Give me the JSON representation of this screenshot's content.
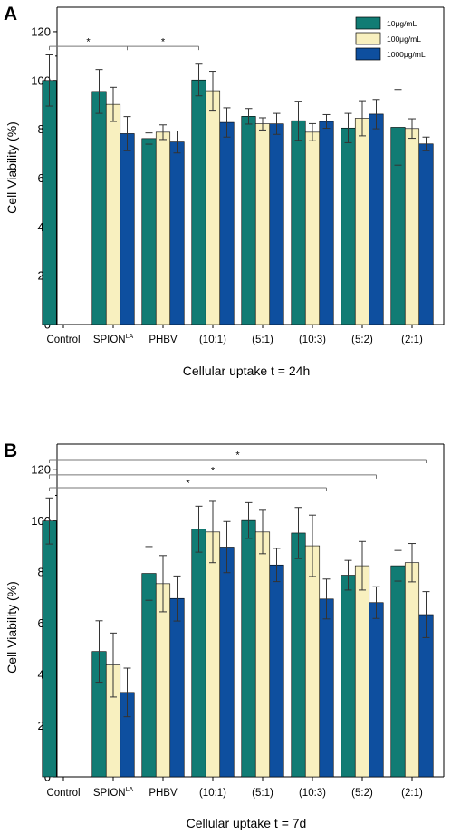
{
  "colors": {
    "series": [
      "#117c74",
      "#f8f0bf",
      "#0e4f9f"
    ],
    "axis": "#000000",
    "errorbar": "#333333",
    "bracket": "#777777"
  },
  "chart_data": [
    {
      "type": "bar",
      "panel": "A",
      "title": "",
      "xlabel": "Cellular uptake  t = 24h",
      "ylabel": "Cell Viability (%)",
      "ylim": [
        0,
        130
      ],
      "yticks": [
        0,
        20,
        40,
        60,
        80,
        100,
        120
      ],
      "grid": false,
      "legend_position": "top-right",
      "categories": [
        {
          "main": "Control",
          "sup": ""
        },
        {
          "main": "SPION",
          "sup": "LA"
        },
        {
          "main": "PHBV",
          "sup": ""
        },
        {
          "main": "(10:1)",
          "sup": ""
        },
        {
          "main": "(5:1)",
          "sup": ""
        },
        {
          "main": "(10:3)",
          "sup": ""
        },
        {
          "main": "(5:2)",
          "sup": ""
        },
        {
          "main": "(2:1)",
          "sup": ""
        }
      ],
      "series": [
        {
          "name": "10μg/mL",
          "values": [
            100,
            95.5,
            76.2,
            100.2,
            85.3,
            83.5,
            80.5,
            80.8
          ],
          "errors": [
            10.5,
            9,
            2.3,
            6.5,
            3.2,
            8,
            6,
            15.5
          ]
        },
        {
          "name": "100μg/mL",
          "values": [
            null,
            90.2,
            78.8,
            95.8,
            82.2,
            78.8,
            84.5,
            80.3
          ],
          "errors": [
            null,
            7,
            3,
            8,
            2.5,
            3.5,
            7.2,
            4
          ]
        },
        {
          "name": "1000μg/mL",
          "values": [
            null,
            78.2,
            74.8,
            82.8,
            82.2,
            83.2,
            86.2,
            74
          ],
          "errors": [
            null,
            7,
            4.5,
            6,
            4.3,
            2.8,
            6,
            2.8
          ]
        }
      ],
      "significance": [
        {
          "from": [
            0,
            0
          ],
          "to": [
            1,
            2
          ],
          "label": "*"
        },
        {
          "from": [
            1,
            2
          ],
          "to": [
            3,
            0
          ],
          "label": "*"
        }
      ]
    },
    {
      "type": "bar",
      "panel": "B",
      "title": "",
      "xlabel": "Cellular uptake t = 7d",
      "ylabel": "Cell Viability (%)",
      "ylim": [
        0,
        130
      ],
      "yticks": [
        0,
        20,
        40,
        60,
        80,
        100,
        120
      ],
      "grid": false,
      "legend_position": "none",
      "categories": [
        {
          "main": "Control",
          "sup": ""
        },
        {
          "main": "SPION",
          "sup": "LA"
        },
        {
          "main": "PHBV",
          "sup": ""
        },
        {
          "main": "(10:1)",
          "sup": ""
        },
        {
          "main": "(5:1)",
          "sup": ""
        },
        {
          "main": "(10:3)",
          "sup": ""
        },
        {
          "main": "(5:2)",
          "sup": ""
        },
        {
          "main": "(2:1)",
          "sup": ""
        }
      ],
      "series": [
        {
          "name": "10μg/mL",
          "values": [
            100,
            49,
            79.5,
            96.8,
            100.2,
            95.3,
            78.8,
            82.5
          ],
          "errors": [
            9,
            12,
            10.5,
            9,
            7,
            10,
            5.8,
            6
          ]
        },
        {
          "name": "100μg/mL",
          "values": [
            null,
            43.7,
            75.5,
            95.7,
            95.7,
            90.3,
            82.5,
            83.7
          ],
          "errors": [
            null,
            12.5,
            11,
            12,
            8.5,
            12,
            9.5,
            7.5
          ]
        },
        {
          "name": "1000μg/mL",
          "values": [
            null,
            33,
            69.7,
            89.8,
            82.8,
            69.5,
            68.1,
            63.4
          ],
          "errors": [
            null,
            9.5,
            8.8,
            10,
            6.5,
            7.8,
            6.2,
            9
          ]
        }
      ],
      "significance": [
        {
          "from": [
            0,
            0
          ],
          "to": [
            7,
            2
          ],
          "label": "*",
          "level": 124
        },
        {
          "from": [
            0,
            0
          ],
          "to": [
            6,
            2
          ],
          "label": "*",
          "level": 118
        },
        {
          "from": [
            0,
            0
          ],
          "to": [
            5,
            2
          ],
          "label": "*",
          "level": 113
        }
      ]
    }
  ]
}
